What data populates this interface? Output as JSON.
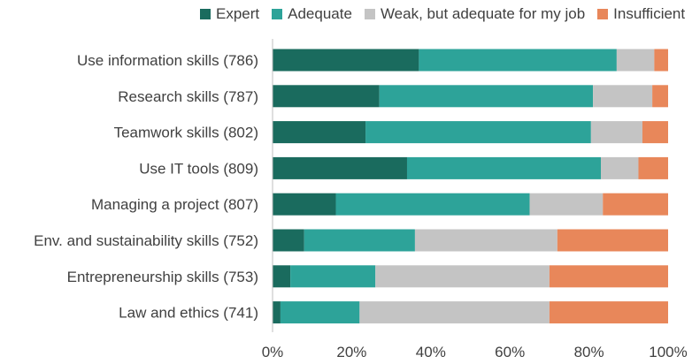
{
  "chart_data": {
    "type": "bar",
    "orientation": "horizontal",
    "stacked": true,
    "percent": true,
    "categories": [
      "Use information skills (786)",
      "Research skills (787)",
      "Teamwork skills (802)",
      "Use IT tools (809)",
      "Managing a project (807)",
      "Env. and sustainability skills (752)",
      "Entrepreneurship skills (753)",
      "Law and ethics (741)"
    ],
    "series": [
      {
        "name": "Expert",
        "color": "#1a6b5e",
        "values": [
          37,
          27,
          23.5,
          34,
          16,
          8,
          4.5,
          2
        ]
      },
      {
        "name": "Adequate",
        "color": "#2da399",
        "values": [
          50,
          54,
          57,
          49,
          49,
          28,
          21.5,
          20
        ]
      },
      {
        "name": "Weak, but adequate for my job",
        "color": "#c4c4c4",
        "values": [
          9.5,
          15,
          13,
          9.5,
          18.5,
          36,
          44,
          48
        ]
      },
      {
        "name": "Insufficient",
        "color": "#e8875a",
        "values": [
          3.5,
          4,
          6.5,
          7.5,
          16.5,
          28,
          30,
          30
        ]
      }
    ],
    "xlim": [
      0,
      100
    ],
    "xticks": [
      "0%",
      "20%",
      "40%",
      "60%",
      "80%",
      "100%"
    ],
    "legend_position": "top",
    "grid": false
  }
}
